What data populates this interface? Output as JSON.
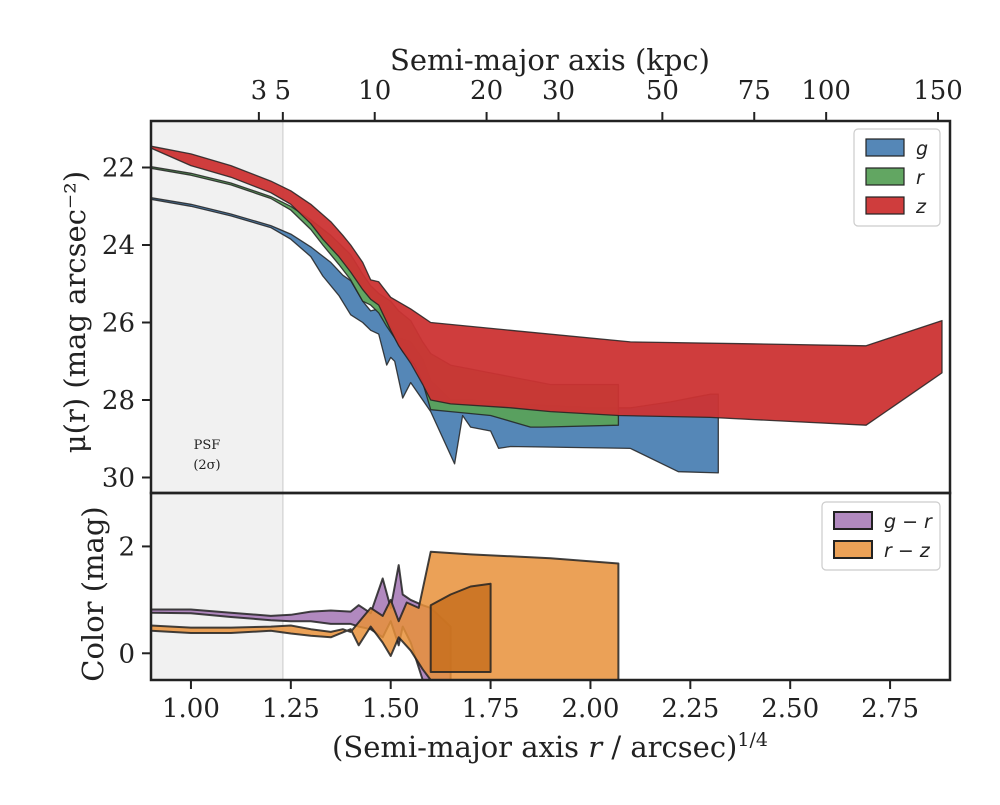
{
  "chart_data": [
    {
      "type": "area",
      "panel": "top",
      "top_axis": {
        "label": "Semi-major axis (kpc)",
        "ticks": [
          {
            "label": "3",
            "x": 1.17
          },
          {
            "label": "5",
            "x": 1.23
          },
          {
            "label": "10",
            "x": 1.46
          },
          {
            "label": "20",
            "x": 1.74
          },
          {
            "label": "30",
            "x": 1.92
          },
          {
            "label": "50",
            "x": 2.18
          },
          {
            "label": "75",
            "x": 2.41
          },
          {
            "label": "100",
            "x": 2.59
          },
          {
            "label": "150",
            "x": 2.87
          }
        ]
      },
      "xlabel": "",
      "ylabel": "μ(r) (mag arcsec⁻²)",
      "xlim": [
        0.9,
        2.9
      ],
      "ylim": [
        30.4,
        20.8
      ],
      "x_ticks": [
        1.0,
        1.25,
        1.5,
        1.75,
        2.0,
        2.25,
        2.5,
        2.75
      ],
      "y_ticks": [
        22,
        24,
        26,
        28,
        30
      ],
      "y_tick_labels": [
        "22",
        "24",
        "26",
        "28",
        "30"
      ],
      "legend": {
        "position": "top-right",
        "entries": [
          "g",
          "r",
          "z"
        ]
      },
      "psf_label_line1": "PSF",
      "psf_label_line2": "(2σ)",
      "psf_region_x": [
        0.9,
        1.23
      ],
      "series": [
        {
          "name": "g",
          "color": "#4c81b3",
          "upper": [
            [
              0.9,
              22.78
            ],
            [
              1.0,
              22.95
            ],
            [
              1.1,
              23.2
            ],
            [
              1.2,
              23.5
            ],
            [
              1.25,
              23.72
            ],
            [
              1.3,
              24.05
            ],
            [
              1.35,
              24.45
            ],
            [
              1.38,
              24.78
            ],
            [
              1.4,
              24.92
            ],
            [
              1.43,
              25.45
            ],
            [
              1.45,
              25.7
            ],
            [
              1.47,
              25.65
            ],
            [
              1.5,
              26.1
            ],
            [
              1.52,
              26.4
            ],
            [
              1.55,
              26.5
            ],
            [
              1.58,
              26.95
            ],
            [
              1.6,
              27.5
            ],
            [
              1.65,
              28.0
            ],
            [
              1.7,
              28.0
            ],
            [
              1.8,
              28.1
            ],
            [
              2.0,
              28.2
            ],
            [
              2.1,
              28.2
            ],
            [
              2.2,
              28.05
            ],
            [
              2.3,
              27.85
            ],
            [
              2.32,
              27.85
            ]
          ],
          "lower": [
            [
              2.32,
              29.88
            ],
            [
              2.22,
              29.85
            ],
            [
              2.1,
              29.25
            ],
            [
              1.8,
              29.2
            ],
            [
              1.77,
              29.25
            ],
            [
              1.75,
              28.8
            ],
            [
              1.7,
              28.7
            ],
            [
              1.68,
              28.4
            ],
            [
              1.66,
              29.65
            ],
            [
              1.6,
              28.3
            ],
            [
              1.58,
              28.0
            ],
            [
              1.55,
              27.55
            ],
            [
              1.53,
              27.95
            ],
            [
              1.51,
              27.0
            ],
            [
              1.5,
              26.9
            ],
            [
              1.49,
              27.1
            ],
            [
              1.47,
              26.3
            ],
            [
              1.45,
              26.2
            ],
            [
              1.43,
              26.0
            ],
            [
              1.4,
              25.8
            ],
            [
              1.37,
              25.3
            ],
            [
              1.33,
              24.8
            ],
            [
              1.3,
              24.3
            ],
            [
              1.25,
              23.85
            ],
            [
              1.2,
              23.55
            ],
            [
              1.1,
              23.25
            ],
            [
              1.0,
              23.0
            ],
            [
              0.9,
              22.82
            ]
          ]
        },
        {
          "name": "r",
          "color": "#5aa15a",
          "upper": [
            [
              0.9,
              21.98
            ],
            [
              1.0,
              22.15
            ],
            [
              1.1,
              22.4
            ],
            [
              1.2,
              22.75
            ],
            [
              1.25,
              23.0
            ],
            [
              1.3,
              23.35
            ],
            [
              1.35,
              23.75
            ],
            [
              1.38,
              24.05
            ],
            [
              1.4,
              24.25
            ],
            [
              1.43,
              24.75
            ],
            [
              1.45,
              25.05
            ],
            [
              1.47,
              25.25
            ],
            [
              1.5,
              25.45
            ],
            [
              1.52,
              25.7
            ],
            [
              1.55,
              25.95
            ],
            [
              1.58,
              26.5
            ],
            [
              1.6,
              26.8
            ],
            [
              1.65,
              27.1
            ],
            [
              1.75,
              27.3
            ],
            [
              1.9,
              27.6
            ],
            [
              2.07,
              27.6
            ]
          ],
          "lower": [
            [
              2.07,
              28.65
            ],
            [
              1.88,
              28.7
            ],
            [
              1.85,
              28.7
            ],
            [
              1.75,
              28.4
            ],
            [
              1.65,
              28.3
            ],
            [
              1.6,
              28.25
            ],
            [
              1.58,
              27.55
            ],
            [
              1.56,
              27.1
            ],
            [
              1.53,
              26.75
            ],
            [
              1.51,
              26.4
            ],
            [
              1.49,
              26.1
            ],
            [
              1.47,
              25.75
            ],
            [
              1.45,
              25.55
            ],
            [
              1.43,
              25.45
            ],
            [
              1.4,
              24.9
            ],
            [
              1.37,
              24.5
            ],
            [
              1.33,
              24.0
            ],
            [
              1.3,
              23.6
            ],
            [
              1.25,
              23.1
            ],
            [
              1.2,
              22.8
            ],
            [
              1.1,
              22.45
            ],
            [
              1.0,
              22.2
            ],
            [
              0.9,
              22.02
            ]
          ]
        },
        {
          "name": "z",
          "color": "#cc3333",
          "upper": [
            [
              0.9,
              21.45
            ],
            [
              1.0,
              21.65
            ],
            [
              1.1,
              21.95
            ],
            [
              1.2,
              22.35
            ],
            [
              1.25,
              22.6
            ],
            [
              1.3,
              22.95
            ],
            [
              1.35,
              23.4
            ],
            [
              1.38,
              23.75
            ],
            [
              1.4,
              24.0
            ],
            [
              1.43,
              24.45
            ],
            [
              1.45,
              24.9
            ],
            [
              1.47,
              24.95
            ],
            [
              1.5,
              25.35
            ],
            [
              1.55,
              25.65
            ],
            [
              1.6,
              26.0
            ],
            [
              1.8,
              26.2
            ],
            [
              2.1,
              26.5
            ],
            [
              2.4,
              26.55
            ],
            [
              2.69,
              26.6
            ],
            [
              2.88,
              25.95
            ]
          ],
          "lower": [
            [
              2.88,
              27.3
            ],
            [
              2.69,
              28.65
            ],
            [
              2.3,
              28.45
            ],
            [
              2.07,
              28.4
            ],
            [
              1.9,
              28.3
            ],
            [
              1.8,
              28.2
            ],
            [
              1.65,
              28.1
            ],
            [
              1.6,
              28.0
            ],
            [
              1.58,
              27.6
            ],
            [
              1.55,
              27.05
            ],
            [
              1.52,
              26.6
            ],
            [
              1.5,
              26.2
            ],
            [
              1.47,
              25.55
            ],
            [
              1.45,
              25.4
            ],
            [
              1.43,
              25.15
            ],
            [
              1.4,
              24.7
            ],
            [
              1.37,
              24.3
            ],
            [
              1.33,
              23.85
            ],
            [
              1.3,
              23.45
            ],
            [
              1.25,
              22.95
            ],
            [
              1.2,
              22.65
            ],
            [
              1.1,
              22.25
            ],
            [
              1.0,
              21.95
            ],
            [
              0.9,
              21.5
            ]
          ]
        }
      ]
    },
    {
      "type": "area",
      "panel": "bottom",
      "xlabel": "(Semi-major axis r / arcsec)^1/4",
      "xlabel_main": "(Semi-major axis ",
      "xlabel_var": "r",
      "xlabel_rest": " / arcsec)",
      "xlabel_exp": "1/4",
      "ylabel": "Color (mag)",
      "xlim": [
        0.9,
        2.9
      ],
      "ylim": [
        -0.5,
        3.0
      ],
      "x_ticks": [
        1.0,
        1.25,
        1.5,
        1.75,
        2.0,
        2.25,
        2.5,
        2.75
      ],
      "x_tick_labels": [
        "1.00",
        "1.25",
        "1.50",
        "1.75",
        "2.00",
        "2.25",
        "2.50",
        "2.75"
      ],
      "y_ticks": [
        0,
        2
      ],
      "y_tick_labels": [
        "0",
        "2"
      ],
      "legend": {
        "position": "top-right",
        "entries": [
          "g − r",
          "r − z"
        ]
      },
      "series": [
        {
          "name": "g − r",
          "color": "#a374b4",
          "upper": [
            [
              0.9,
              0.82
            ],
            [
              1.0,
              0.82
            ],
            [
              1.1,
              0.76
            ],
            [
              1.2,
              0.7
            ],
            [
              1.25,
              0.72
            ],
            [
              1.3,
              0.78
            ],
            [
              1.35,
              0.8
            ],
            [
              1.4,
              0.78
            ],
            [
              1.42,
              0.9
            ],
            [
              1.45,
              0.75
            ],
            [
              1.48,
              1.4
            ],
            [
              1.5,
              0.85
            ],
            [
              1.52,
              1.65
            ],
            [
              1.53,
              1.1
            ],
            [
              1.55,
              1.0
            ],
            [
              1.58,
              0.9
            ],
            [
              1.6,
              0.85
            ],
            [
              1.65,
              0.5
            ]
          ],
          "lower": [
            [
              1.65,
              -0.5
            ],
            [
              1.6,
              -0.5
            ],
            [
              1.58,
              -0.5
            ],
            [
              1.55,
              0.2
            ],
            [
              1.53,
              0.5
            ],
            [
              1.52,
              0.15
            ],
            [
              1.5,
              0.6
            ],
            [
              1.48,
              0.3
            ],
            [
              1.45,
              0.45
            ],
            [
              1.42,
              0.5
            ],
            [
              1.4,
              0.55
            ],
            [
              1.35,
              0.55
            ],
            [
              1.3,
              0.6
            ],
            [
              1.25,
              0.6
            ],
            [
              1.2,
              0.62
            ],
            [
              1.1,
              0.68
            ],
            [
              1.0,
              0.75
            ],
            [
              0.9,
              0.76
            ]
          ]
        },
        {
          "name": "r − z",
          "color": "#e8913a",
          "upper": [
            [
              0.9,
              0.52
            ],
            [
              1.0,
              0.48
            ],
            [
              1.1,
              0.48
            ],
            [
              1.2,
              0.5
            ],
            [
              1.25,
              0.52
            ],
            [
              1.3,
              0.45
            ],
            [
              1.35,
              0.4
            ],
            [
              1.38,
              0.45
            ],
            [
              1.4,
              0.4
            ],
            [
              1.45,
              0.85
            ],
            [
              1.48,
              0.7
            ],
            [
              1.5,
              1.0
            ],
            [
              1.52,
              0.6
            ],
            [
              1.54,
              0.95
            ],
            [
              1.57,
              0.85
            ],
            [
              1.6,
              1.9
            ],
            [
              1.7,
              1.85
            ],
            [
              1.9,
              1.78
            ],
            [
              2.07,
              1.68
            ]
          ],
          "lower": [
            [
              2.07,
              -0.5
            ],
            [
              1.75,
              -0.5
            ],
            [
              1.7,
              -0.5
            ],
            [
              1.6,
              -0.5
            ],
            [
              1.58,
              -0.3
            ],
            [
              1.55,
              0.05
            ],
            [
              1.52,
              0.3
            ],
            [
              1.5,
              -0.05
            ],
            [
              1.48,
              0.2
            ],
            [
              1.45,
              0.5
            ],
            [
              1.42,
              0.15
            ],
            [
              1.4,
              0.45
            ],
            [
              1.35,
              0.3
            ],
            [
              1.3,
              0.33
            ],
            [
              1.25,
              0.37
            ],
            [
              1.2,
              0.42
            ],
            [
              1.1,
              0.38
            ],
            [
              1.0,
              0.38
            ],
            [
              0.9,
              0.42
            ]
          ]
        },
        {
          "name": "",
          "color": "#c8701e",
          "upper": [
            [
              1.6,
              0.9
            ],
            [
              1.65,
              1.1
            ],
            [
              1.7,
              1.25
            ],
            [
              1.75,
              1.3
            ]
          ],
          "lower": [
            [
              1.75,
              -0.35
            ],
            [
              1.7,
              -0.35
            ],
            [
              1.65,
              -0.35
            ],
            [
              1.6,
              -0.35
            ]
          ]
        }
      ]
    }
  ]
}
